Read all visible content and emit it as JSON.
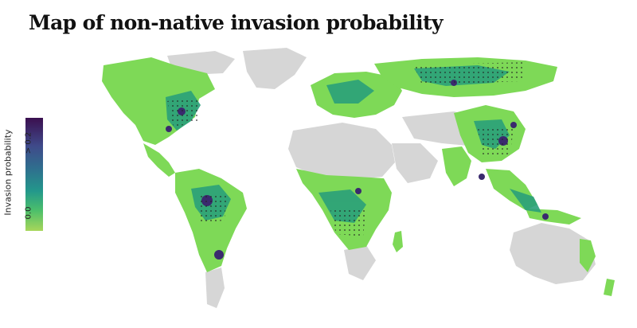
{
  "title": "Map of non-native invasion probability",
  "legend": {
    "title": "Invasion probability",
    "max_label": "> 0.2",
    "min_label": "0.0",
    "colors": [
      "#a7d65a",
      "#4cbf6b",
      "#23988b",
      "#2f6f8e",
      "#3f4a8a",
      "#3b0f4f"
    ]
  },
  "colors": {
    "land_no_data": "#d6d6d6",
    "low": "#7ed957",
    "mid": "#2aa07a",
    "high": "#3a2a6e",
    "hatch": "#222222"
  }
}
